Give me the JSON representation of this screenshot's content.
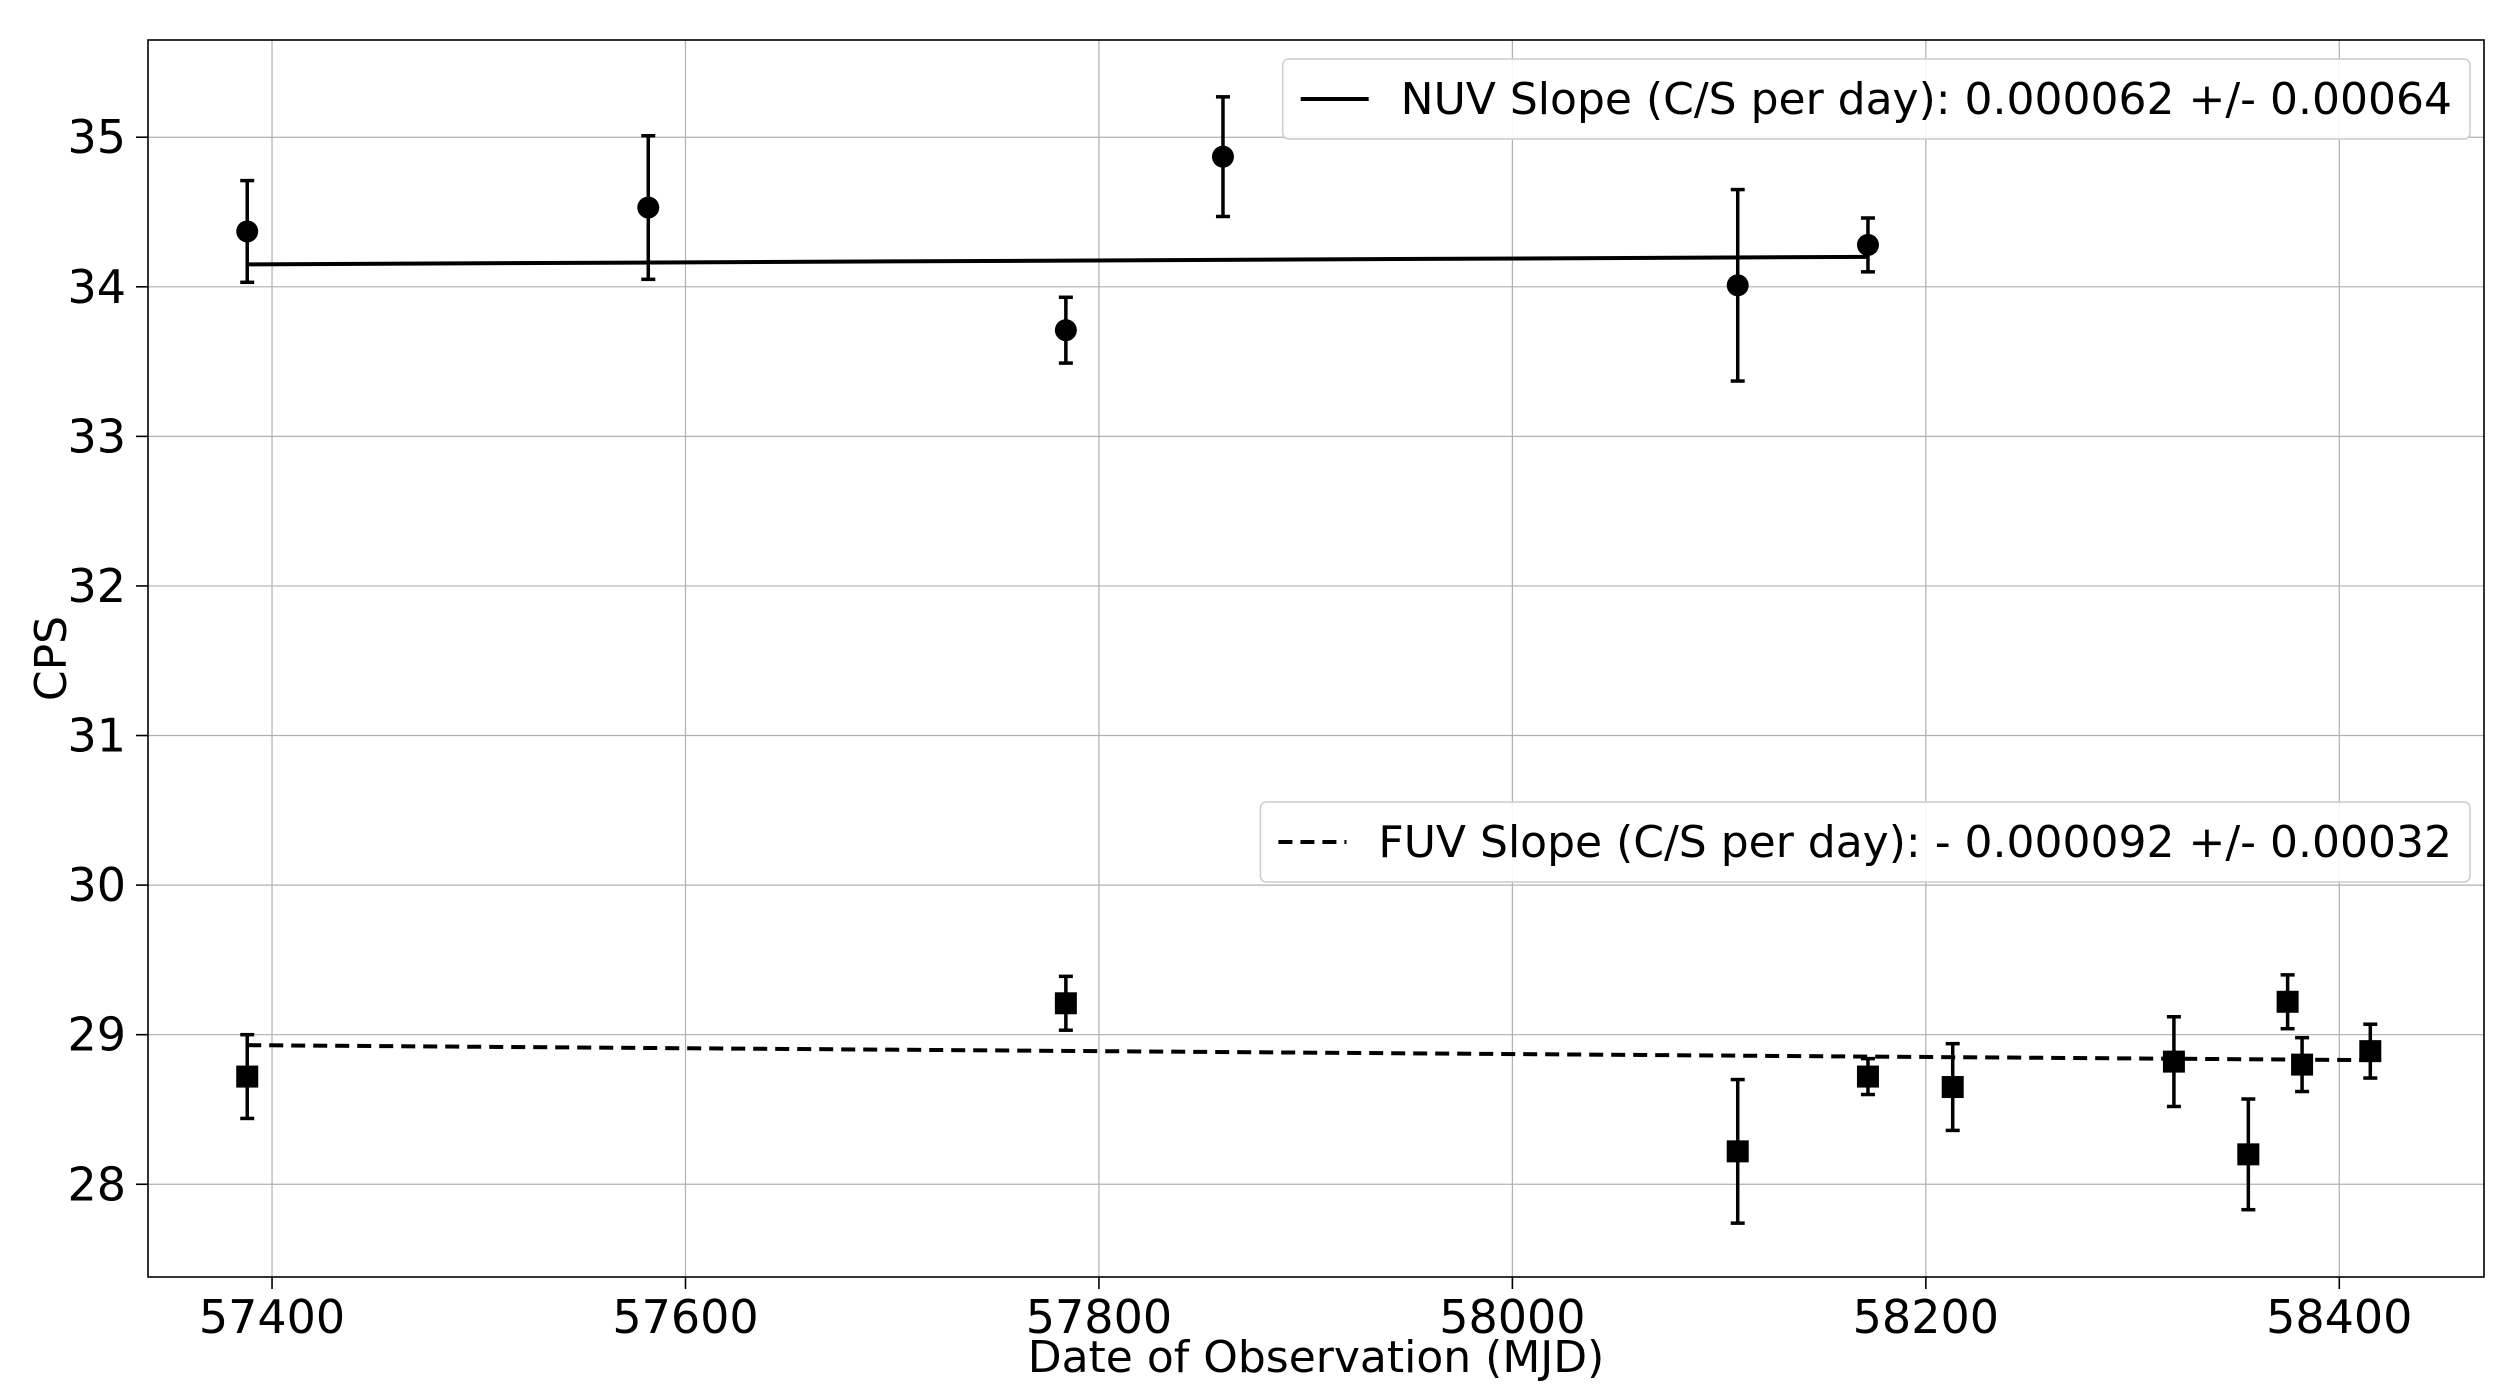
{
  "chart_data": {
    "type": "scatter",
    "xlabel": "Date of Observation (MJD)",
    "ylabel": "CPS",
    "xlim": [
      57340,
      58470
    ],
    "ylim": [
      27.38,
      35.65
    ],
    "grid": true,
    "x_ticks": [
      57400,
      57600,
      57800,
      58000,
      58200,
      58400
    ],
    "y_ticks": [
      28,
      29,
      30,
      31,
      32,
      33,
      34,
      35
    ],
    "series": [
      {
        "name": "NUV",
        "marker": "circle",
        "points": [
          {
            "x": 57388,
            "y": 34.37,
            "err": 0.34
          },
          {
            "x": 57582,
            "y": 34.53,
            "err": 0.48
          },
          {
            "x": 57784,
            "y": 33.71,
            "err": 0.22
          },
          {
            "x": 57860,
            "y": 34.87,
            "err": 0.4
          },
          {
            "x": 58109,
            "y": 34.01,
            "err": 0.64
          },
          {
            "x": 58172,
            "y": 34.28,
            "err": 0.18
          }
        ],
        "fit": {
          "x": [
            57388,
            58172
          ],
          "y": [
            34.15,
            34.2
          ],
          "style": "solid"
        },
        "legend": "NUV Slope (C/S per day): 0.000062 +/- 0.00064"
      },
      {
        "name": "FUV",
        "marker": "square",
        "points": [
          {
            "x": 57388,
            "y": 28.72,
            "err": 0.28
          },
          {
            "x": 57784,
            "y": 29.21,
            "err": 0.18
          },
          {
            "x": 58109,
            "y": 28.22,
            "err": 0.48
          },
          {
            "x": 58172,
            "y": 28.72,
            "err": 0.12
          },
          {
            "x": 58213,
            "y": 28.65,
            "err": 0.29
          },
          {
            "x": 58320,
            "y": 28.82,
            "err": 0.3
          },
          {
            "x": 58356,
            "y": 28.2,
            "err": 0.37
          },
          {
            "x": 58375,
            "y": 29.22,
            "err": 0.18
          },
          {
            "x": 58382,
            "y": 28.8,
            "err": 0.18
          },
          {
            "x": 58415,
            "y": 28.89,
            "err": 0.18
          }
        ],
        "fit": {
          "x": [
            57388,
            58415
          ],
          "y": [
            28.93,
            28.83
          ],
          "style": "dashed"
        },
        "legend": "FUV Slope (C/S per day): - 0.000092 +/- 0.00032"
      }
    ]
  }
}
